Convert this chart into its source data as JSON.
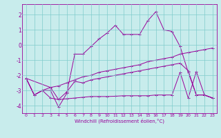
{
  "xlabel": "Windchill (Refroidissement éolien,°C)",
  "background_color": "#c8ecec",
  "line_color": "#990099",
  "grid_color": "#aadddd",
  "xlim": [
    -0.5,
    23.5
  ],
  "ylim": [
    -4.5,
    2.7
  ],
  "xticks": [
    0,
    1,
    2,
    3,
    4,
    5,
    6,
    7,
    8,
    9,
    10,
    11,
    12,
    13,
    14,
    15,
    16,
    17,
    18,
    19,
    20,
    21,
    22,
    23
  ],
  "yticks": [
    -4,
    -3,
    -2,
    -1,
    0,
    1,
    2
  ],
  "line1_x": [
    0,
    1,
    2,
    3,
    4,
    5,
    6,
    7,
    8,
    9,
    10,
    11,
    12,
    13,
    14,
    15,
    16,
    17,
    18,
    19,
    20,
    21,
    22,
    23
  ],
  "line1_y": [
    -2.2,
    -3.3,
    -3.0,
    -3.0,
    -4.1,
    -3.2,
    -0.6,
    -0.6,
    -0.1,
    0.4,
    0.8,
    1.3,
    0.7,
    0.7,
    0.7,
    1.6,
    2.2,
    1.0,
    0.9,
    -0.1,
    -1.8,
    -3.3,
    -3.3,
    -3.5
  ],
  "line2_x": [
    0,
    3,
    4,
    5,
    6,
    7,
    8,
    9,
    10,
    11,
    12,
    13,
    14,
    15,
    16,
    17,
    18,
    19,
    20,
    21,
    22,
    23
  ],
  "line2_y": [
    -2.2,
    -2.8,
    -3.6,
    -3.1,
    -2.4,
    -2.5,
    -2.3,
    -2.2,
    -2.1,
    -2.0,
    -1.9,
    -1.8,
    -1.7,
    -1.6,
    -1.5,
    -1.4,
    -1.3,
    -1.2,
    -1.7,
    -3.3,
    -3.3,
    -3.5
  ],
  "line3_x": [
    0,
    1,
    2,
    3,
    4,
    5,
    6,
    7,
    8,
    9,
    10,
    11,
    12,
    13,
    14,
    15,
    16,
    17,
    18,
    19,
    20,
    21,
    22,
    23
  ],
  "line3_y": [
    -2.2,
    -3.3,
    -3.0,
    -2.8,
    -2.7,
    -2.5,
    -2.3,
    -2.1,
    -2.0,
    -1.8,
    -1.7,
    -1.6,
    -1.5,
    -1.4,
    -1.3,
    -1.1,
    -1.0,
    -0.9,
    -0.8,
    -0.6,
    -0.5,
    -0.4,
    -0.3,
    -0.2
  ],
  "line4_x": [
    0,
    1,
    2,
    3,
    4,
    5,
    6,
    7,
    8,
    9,
    10,
    11,
    12,
    13,
    14,
    15,
    16,
    17,
    18,
    19,
    20,
    21,
    22,
    23
  ],
  "line4_y": [
    -2.2,
    -3.3,
    -3.0,
    -3.5,
    -3.6,
    -3.55,
    -3.5,
    -3.45,
    -3.4,
    -3.4,
    -3.4,
    -3.38,
    -3.35,
    -3.35,
    -3.35,
    -3.35,
    -3.3,
    -3.3,
    -3.3,
    -1.8,
    -3.5,
    -1.75,
    -3.3,
    -3.5
  ]
}
